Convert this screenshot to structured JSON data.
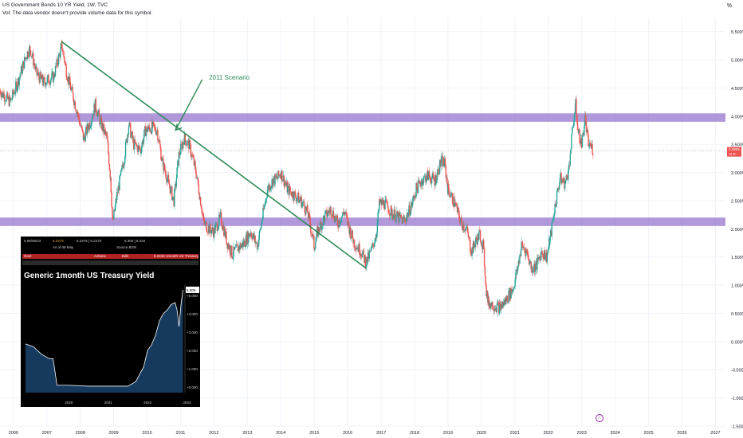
{
  "header": {
    "title": "US Government Bonds 10 YR Yield, 1W, TVC",
    "volume_note": "Vol: The data vendor doesn't provide volume data for this symbol."
  },
  "y_unit": "%",
  "annotation": "2011 Scenario",
  "price_tag": {
    "value": "3.3805",
    "sub": "1d 3h",
    "color": "#ef5350"
  },
  "colors": {
    "up": "#26a69a",
    "down": "#ef5350",
    "zone": "#9575cd",
    "trend": "#2e8b57"
  },
  "chart_data": {
    "type": "candlestick",
    "y_tick_labels": [
      "5.500%",
      "5.000%",
      "4.500%",
      "4.000%",
      "3.500%",
      "3.000%",
      "2.500%",
      "2.000%",
      "1.500%",
      "1.000%",
      "0.500%",
      "0.000%",
      "-0.500%",
      "-1.000%",
      "-1.500%"
    ],
    "ylim": [
      -1.5,
      5.75
    ],
    "x_tick_labels": [
      "2006",
      "2007",
      "2008",
      "2009",
      "2010",
      "2011",
      "2012",
      "2013",
      "2014",
      "2015",
      "2016",
      "2017",
      "2018",
      "2019",
      "2020",
      "2021",
      "2022",
      "2023",
      "2024",
      "2025",
      "2026",
      "2027"
    ],
    "xlim": [
      2005.6,
      2027.3
    ],
    "last_value": 3.3805,
    "series_close": [
      [
        2005.6,
        4.45
      ],
      [
        2005.9,
        4.25
      ],
      [
        2006.1,
        4.55
      ],
      [
        2006.4,
        5.1
      ],
      [
        2006.5,
        5.2
      ],
      [
        2006.7,
        4.75
      ],
      [
        2006.9,
        4.6
      ],
      [
        2007.2,
        4.7
      ],
      [
        2007.45,
        5.25
      ],
      [
        2007.6,
        4.75
      ],
      [
        2007.9,
        4.1
      ],
      [
        2008.1,
        3.6
      ],
      [
        2008.3,
        3.9
      ],
      [
        2008.45,
        4.2
      ],
      [
        2008.6,
        3.9
      ],
      [
        2008.8,
        3.6
      ],
      [
        2008.9,
        2.95
      ],
      [
        2008.97,
        2.1
      ],
      [
        2009.1,
        2.6
      ],
      [
        2009.3,
        3.2
      ],
      [
        2009.45,
        3.85
      ],
      [
        2009.6,
        3.5
      ],
      [
        2009.8,
        3.4
      ],
      [
        2009.95,
        3.75
      ],
      [
        2010.15,
        3.8
      ],
      [
        2010.3,
        3.75
      ],
      [
        2010.45,
        3.2
      ],
      [
        2010.65,
        2.8
      ],
      [
        2010.8,
        2.5
      ],
      [
        2010.95,
        3.3
      ],
      [
        2011.1,
        3.6
      ],
      [
        2011.25,
        3.5
      ],
      [
        2011.45,
        3.05
      ],
      [
        2011.6,
        2.5
      ],
      [
        2011.7,
        2.1
      ],
      [
        2011.85,
        2.0
      ],
      [
        2012.0,
        1.95
      ],
      [
        2012.2,
        2.2
      ],
      [
        2012.4,
        1.75
      ],
      [
        2012.55,
        1.55
      ],
      [
        2012.7,
        1.65
      ],
      [
        2012.9,
        1.75
      ],
      [
        2013.1,
        1.95
      ],
      [
        2013.3,
        1.7
      ],
      [
        2013.45,
        2.2
      ],
      [
        2013.6,
        2.7
      ],
      [
        2013.75,
        2.85
      ],
      [
        2013.9,
        2.9
      ],
      [
        2014.0,
        3.0
      ],
      [
        2014.2,
        2.7
      ],
      [
        2014.4,
        2.6
      ],
      [
        2014.6,
        2.5
      ],
      [
        2014.8,
        2.3
      ],
      [
        2015.0,
        1.7
      ],
      [
        2015.1,
        1.95
      ],
      [
        2015.3,
        2.2
      ],
      [
        2015.5,
        2.35
      ],
      [
        2015.7,
        2.1
      ],
      [
        2015.9,
        2.3
      ],
      [
        2016.05,
        2.0
      ],
      [
        2016.2,
        1.75
      ],
      [
        2016.4,
        1.6
      ],
      [
        2016.55,
        1.4
      ],
      [
        2016.7,
        1.6
      ],
      [
        2016.85,
        1.9
      ],
      [
        2016.95,
        2.45
      ],
      [
        2017.1,
        2.45
      ],
      [
        2017.3,
        2.3
      ],
      [
        2017.5,
        2.2
      ],
      [
        2017.7,
        2.15
      ],
      [
        2017.9,
        2.4
      ],
      [
        2018.05,
        2.7
      ],
      [
        2018.2,
        2.85
      ],
      [
        2018.4,
        2.95
      ],
      [
        2018.6,
        2.85
      ],
      [
        2018.8,
        3.2
      ],
      [
        2018.9,
        3.15
      ],
      [
        2019.0,
        2.7
      ],
      [
        2019.2,
        2.45
      ],
      [
        2019.4,
        2.1
      ],
      [
        2019.55,
        2.0
      ],
      [
        2019.7,
        1.6
      ],
      [
        2019.85,
        1.8
      ],
      [
        2019.95,
        1.9
      ],
      [
        2020.05,
        1.7
      ],
      [
        2020.15,
        0.9
      ],
      [
        2020.2,
        0.7
      ],
      [
        2020.35,
        0.65
      ],
      [
        2020.55,
        0.6
      ],
      [
        2020.7,
        0.7
      ],
      [
        2020.85,
        0.85
      ],
      [
        2020.95,
        0.95
      ],
      [
        2021.05,
        1.2
      ],
      [
        2021.2,
        1.7
      ],
      [
        2021.35,
        1.6
      ],
      [
        2021.5,
        1.3
      ],
      [
        2021.65,
        1.35
      ],
      [
        2021.8,
        1.6
      ],
      [
        2021.95,
        1.5
      ],
      [
        2022.05,
        1.8
      ],
      [
        2022.2,
        2.4
      ],
      [
        2022.35,
        2.9
      ],
      [
        2022.5,
        2.8
      ],
      [
        2022.6,
        3.0
      ],
      [
        2022.75,
        3.9
      ],
      [
        2022.82,
        4.2
      ],
      [
        2022.9,
        3.7
      ],
      [
        2023.0,
        3.5
      ],
      [
        2023.1,
        3.95
      ],
      [
        2023.2,
        3.5
      ],
      [
        2023.3,
        3.45
      ],
      [
        2023.35,
        3.38
      ]
    ]
  },
  "inset": {
    "header_row1": [
      "0 06/06/23",
      "5.2275",
      "5.2475 | 5.2275",
      "5.300 | 5.332"
    ],
    "header_row2": [
      "As of 08 May",
      "Source BGN"
    ],
    "red_bar": [
      "Govt",
      "Actions",
      "Edit",
      "5.2234 1month US Treasury"
    ],
    "title": "Generic 1month US Treasury Yield",
    "y_ticks": [
      "+5.000",
      "+4.000",
      "+3.000",
      "+2.000",
      "+1.000",
      "+0.000"
    ],
    "x_ticks": [
      "2020",
      "2021",
      "2022",
      "2023"
    ],
    "last_value": "5.300",
    "chart_data": {
      "type": "area",
      "x": [
        2019.4,
        2019.6,
        2019.8,
        2020.0,
        2020.1,
        2020.2,
        2020.5,
        2021.0,
        2021.5,
        2022.0,
        2022.2,
        2022.4,
        2022.5,
        2022.6,
        2022.7,
        2022.8,
        2022.9,
        2023.0,
        2023.1,
        2023.2,
        2023.25,
        2023.3,
        2023.35,
        2023.4
      ],
      "y": [
        2.35,
        2.2,
        1.8,
        1.55,
        1.55,
        0.1,
        0.1,
        0.05,
        0.05,
        0.05,
        0.3,
        1.1,
        2.0,
        2.3,
        2.8,
        3.6,
        4.0,
        4.2,
        4.5,
        4.6,
        4.2,
        3.3,
        4.5,
        5.3
      ],
      "ylim": [
        -0.3,
        5.6
      ]
    }
  }
}
